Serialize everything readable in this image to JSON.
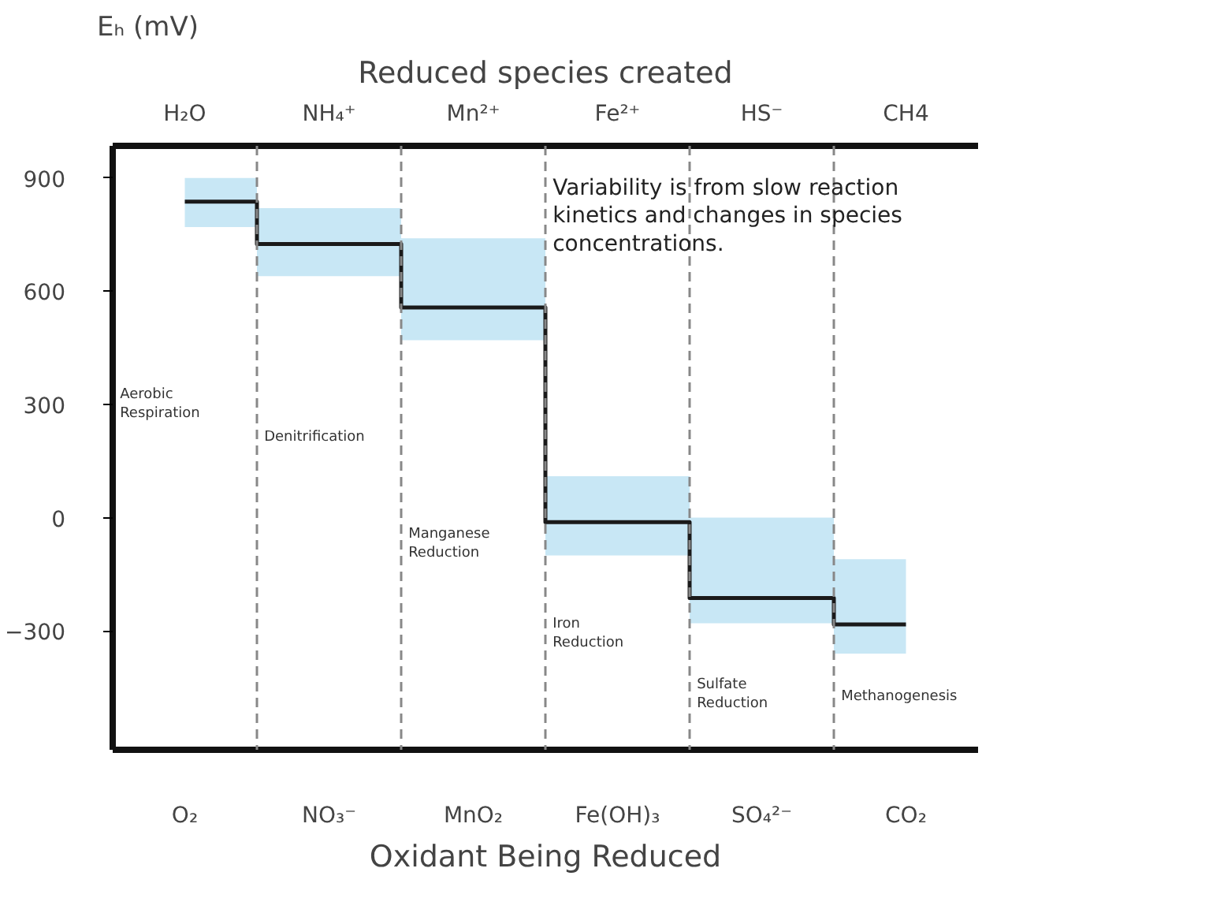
{
  "chart_data": {
    "type": "step",
    "x2label": "Reduced species created",
    "xlabel": "Oxidant Being Reduced",
    "ylabel": "Eₕ (mV)",
    "categories": [
      "O₂",
      "NO₃⁻",
      "MnO₂",
      "Fe(OH)₃",
      "SO₄²⁻",
      "CO₂"
    ],
    "series": [
      {
        "color": "#1a1a1a",
        "values": [
          837,
          725,
          557,
          -12,
          -213,
          -283
        ],
        "upper": [
          900,
          820,
          740,
          110,
          0,
          -110
        ],
        "lower": [
          770,
          640,
          470,
          -100,
          -280,
          -360
        ]
      }
    ],
    "ylim": [
      -615,
      985
    ],
    "yticks": [
      900,
      600,
      300,
      0,
      -300
    ],
    "annotations": [
      "H₂O",
      "NH₄⁺",
      "Mn²⁺",
      "Fe²⁺",
      "HS⁻",
      "CH4",
      "Aerobic\nRespiration",
      "Denitrification",
      "Manganese\nReduction",
      "Iron\nReduction",
      "Sulfate\nReduction",
      "Methanogenesis",
      "Variability is from slow reaction\nkinetics and changes in species\nconcentrations."
    ],
    "grid": false
  }
}
